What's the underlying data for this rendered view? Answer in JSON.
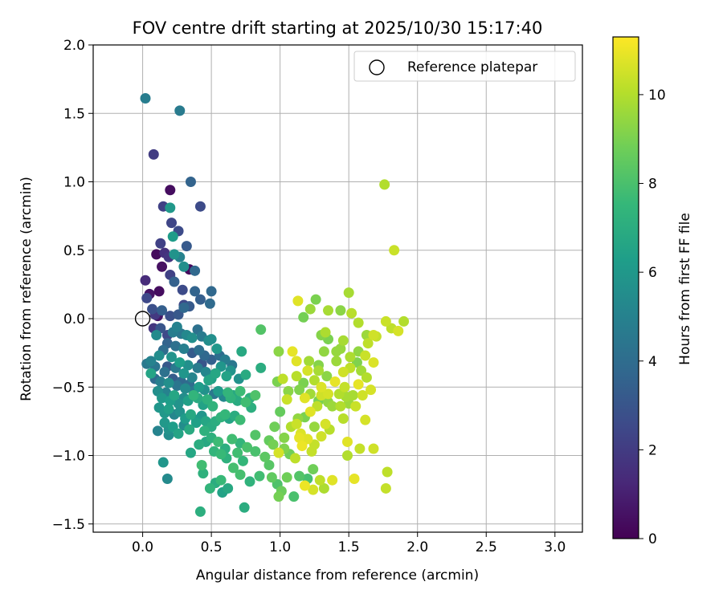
{
  "chart_data": {
    "type": "scatter",
    "title": "FOV centre drift starting at 2025/10/30 15:17:40",
    "xlabel": "Angular distance from reference (arcmin)",
    "ylabel": "Rotation from reference (arcmin)",
    "xlim": [
      -0.36,
      3.2
    ],
    "ylim": [
      -1.56,
      2.0
    ],
    "xticks": [
      0.0,
      0.5,
      1.0,
      1.5,
      2.0,
      2.5,
      3.0
    ],
    "xtick_labels": [
      "0.0",
      "0.5",
      "1.0",
      "1.5",
      "2.0",
      "2.5",
      "3.0"
    ],
    "yticks": [
      -1.5,
      -1.0,
      -0.5,
      0.0,
      0.5,
      1.0,
      1.5,
      2.0
    ],
    "ytick_labels": [
      "−1.5",
      "−1.0",
      "−0.5",
      "0.0",
      "0.5",
      "1.0",
      "1.5",
      "2.0"
    ],
    "grid": true,
    "legend": {
      "placement": "top-right",
      "entries": [
        {
          "label": "Reference platepar",
          "marker": "open-circle"
        }
      ]
    },
    "reference_point": {
      "x": 0.0,
      "y": 0.0
    },
    "colorbar": {
      "label": "Hours from first FF file",
      "colormap": "viridis",
      "range": [
        0,
        11.3
      ],
      "ticks": [
        0,
        2,
        4,
        6,
        8,
        10
      ],
      "tick_labels": [
        "0",
        "2",
        "4",
        "6",
        "8",
        "10"
      ]
    },
    "points": [
      [
        0.02,
        0.28,
        1.4
      ],
      [
        0.03,
        0.15,
        2.5
      ],
      [
        0.05,
        0.18,
        0.6
      ],
      [
        0.07,
        0.07,
        2.8
      ],
      [
        0.09,
        0.03,
        1.9
      ],
      [
        0.11,
        0.02,
        0.7
      ],
      [
        0.12,
        0.2,
        0.4
      ],
      [
        0.14,
        0.38,
        0.5
      ],
      [
        0.1,
        0.47,
        0.3
      ],
      [
        0.13,
        0.55,
        2.2
      ],
      [
        0.16,
        0.48,
        1.6
      ],
      [
        0.19,
        0.45,
        1.8
      ],
      [
        0.2,
        0.94,
        0.4
      ],
      [
        0.15,
        0.82,
        2.2
      ],
      [
        0.21,
        0.7,
        2.4
      ],
      [
        0.26,
        0.64,
        2.6
      ],
      [
        0.22,
        0.6,
        6.2
      ],
      [
        0.2,
        0.81,
        6.0
      ],
      [
        0.23,
        0.47,
        5.8
      ],
      [
        0.27,
        0.45,
        5.0
      ],
      [
        0.3,
        0.38,
        5.6
      ],
      [
        0.32,
        0.53,
        3.2
      ],
      [
        0.34,
        0.36,
        0.3
      ],
      [
        0.38,
        0.35,
        3.8
      ],
      [
        0.42,
        0.82,
        2.6
      ],
      [
        0.35,
        1.0,
        3.6
      ],
      [
        0.02,
        1.61,
        4.8
      ],
      [
        0.27,
        1.52,
        4.7
      ],
      [
        0.08,
        1.2,
        2.0
      ],
      [
        0.2,
        0.32,
        2.2
      ],
      [
        0.23,
        0.27,
        3.5
      ],
      [
        0.29,
        0.21,
        2.6
      ],
      [
        0.38,
        0.2,
        3.6
      ],
      [
        0.5,
        0.2,
        3.8
      ],
      [
        0.14,
        0.06,
        3.4
      ],
      [
        0.2,
        0.02,
        2.8
      ],
      [
        0.26,
        0.03,
        3.1
      ],
      [
        0.3,
        0.08,
        3.8
      ],
      [
        0.34,
        0.09,
        3.2
      ],
      [
        0.3,
        0.1,
        2.5
      ],
      [
        0.42,
        0.14,
        3.4
      ],
      [
        0.49,
        0.11,
        3.9
      ],
      [
        0.08,
        -0.07,
        1.8
      ],
      [
        0.1,
        -0.12,
        5.4
      ],
      [
        0.13,
        -0.07,
        3.0
      ],
      [
        0.18,
        -0.12,
        2.5
      ],
      [
        0.22,
        -0.1,
        4.8
      ],
      [
        0.25,
        -0.06,
        5.0
      ],
      [
        0.28,
        -0.11,
        4.5
      ],
      [
        0.32,
        -0.12,
        5.3
      ],
      [
        0.36,
        -0.14,
        5.6
      ],
      [
        0.4,
        -0.08,
        4.2
      ],
      [
        0.43,
        -0.13,
        4.7
      ],
      [
        0.48,
        -0.16,
        5.5
      ],
      [
        0.5,
        -0.15,
        5.6
      ],
      [
        0.54,
        -0.22,
        6.0
      ],
      [
        0.18,
        -0.18,
        3.6
      ],
      [
        0.24,
        -0.2,
        4.2
      ],
      [
        0.3,
        -0.22,
        4.9
      ],
      [
        0.36,
        -0.25,
        3.3
      ],
      [
        0.41,
        -0.23,
        4.1
      ],
      [
        0.45,
        -0.27,
        3.8
      ],
      [
        0.5,
        -0.3,
        3.5
      ],
      [
        0.56,
        -0.27,
        4.0
      ],
      [
        0.6,
        -0.3,
        4.8
      ],
      [
        0.65,
        -0.34,
        4.5
      ],
      [
        0.72,
        -0.24,
        6.8
      ],
      [
        0.03,
        -0.33,
        4.6
      ],
      [
        0.06,
        -0.31,
        5.0
      ],
      [
        0.09,
        -0.35,
        4.4
      ],
      [
        0.12,
        -0.27,
        5.5
      ],
      [
        0.15,
        -0.23,
        4.0
      ],
      [
        0.18,
        -0.35,
        3.1
      ],
      [
        0.21,
        -0.28,
        5.8
      ],
      [
        0.24,
        -0.36,
        4.6
      ],
      [
        0.27,
        -0.32,
        6.3
      ],
      [
        0.3,
        -0.4,
        5.9
      ],
      [
        0.33,
        -0.34,
        5.6
      ],
      [
        0.36,
        -0.43,
        5.1
      ],
      [
        0.4,
        -0.36,
        4.7
      ],
      [
        0.43,
        -0.33,
        3.0
      ],
      [
        0.46,
        -0.39,
        5.2
      ],
      [
        0.5,
        -0.44,
        6.4
      ],
      [
        0.53,
        -0.4,
        6.7
      ],
      [
        0.57,
        -0.35,
        5.9
      ],
      [
        0.61,
        -0.42,
        6.5
      ],
      [
        0.64,
        -0.38,
        5.8
      ],
      [
        0.7,
        -0.44,
        5.7
      ],
      [
        0.75,
        -0.41,
        6.9
      ],
      [
        0.86,
        -0.36,
        7.0
      ],
      [
        0.06,
        -0.4,
        6.6
      ],
      [
        0.09,
        -0.44,
        3.9
      ],
      [
        0.13,
        -0.46,
        4.9
      ],
      [
        0.16,
        -0.39,
        4.2
      ],
      [
        0.19,
        -0.47,
        5.6
      ],
      [
        0.22,
        -0.44,
        3.3
      ],
      [
        0.25,
        -0.49,
        4.4
      ],
      [
        0.28,
        -0.46,
        3.8
      ],
      [
        0.31,
        -0.51,
        5.4
      ],
      [
        0.34,
        -0.48,
        4.0
      ],
      [
        0.37,
        -0.53,
        4.6
      ],
      [
        0.41,
        -0.5,
        6.2
      ],
      [
        0.45,
        -0.52,
        5.7
      ],
      [
        0.48,
        -0.45,
        6.6
      ],
      [
        0.52,
        -0.55,
        4.5
      ],
      [
        0.55,
        -0.53,
        6.1
      ],
      [
        0.59,
        -0.57,
        5.3
      ],
      [
        0.62,
        -0.54,
        7.4
      ],
      [
        0.66,
        -0.56,
        6.8
      ],
      [
        0.71,
        -0.53,
        7.7
      ],
      [
        0.78,
        -0.58,
        7.2
      ],
      [
        0.82,
        -0.56,
        8.1
      ],
      [
        0.11,
        -0.53,
        5.6
      ],
      [
        0.14,
        -0.58,
        6.0
      ],
      [
        0.17,
        -0.54,
        5.0
      ],
      [
        0.2,
        -0.6,
        6.3
      ],
      [
        0.23,
        -0.56,
        6.7
      ],
      [
        0.26,
        -0.62,
        5.8
      ],
      [
        0.3,
        -0.58,
        5.5
      ],
      [
        0.33,
        -0.6,
        6.4
      ],
      [
        0.37,
        -0.56,
        7.4
      ],
      [
        0.4,
        -0.58,
        6.9
      ],
      [
        0.44,
        -0.63,
        6.5
      ],
      [
        0.47,
        -0.59,
        7.2
      ],
      [
        0.51,
        -0.64,
        7.3
      ],
      [
        0.12,
        -0.65,
        5.9
      ],
      [
        0.16,
        -0.69,
        6.0
      ],
      [
        0.19,
        -0.66,
        6.4
      ],
      [
        0.23,
        -0.7,
        5.2
      ],
      [
        0.27,
        -0.68,
        5.7
      ],
      [
        0.31,
        -0.73,
        6.2
      ],
      [
        0.35,
        -0.7,
        6.8
      ],
      [
        0.39,
        -0.76,
        6.4
      ],
      [
        0.43,
        -0.71,
        5.9
      ],
      [
        0.46,
        -0.75,
        6.7
      ],
      [
        0.5,
        -0.79,
        6.9
      ],
      [
        0.53,
        -0.75,
        7.0
      ],
      [
        0.57,
        -0.72,
        7.3
      ],
      [
        0.6,
        -0.7,
        7.5
      ],
      [
        0.63,
        -0.73,
        6.6
      ],
      [
        0.67,
        -0.71,
        7.0
      ],
      [
        0.71,
        -0.74,
        7.7
      ],
      [
        0.16,
        -0.76,
        6.0
      ],
      [
        0.19,
        -0.81,
        5.8
      ],
      [
        0.22,
        -0.79,
        6.3
      ],
      [
        0.26,
        -0.84,
        6.6
      ],
      [
        0.3,
        -0.78,
        5.5
      ],
      [
        0.34,
        -0.81,
        6.9
      ],
      [
        0.39,
        -0.74,
        6.1
      ],
      [
        0.45,
        -0.82,
        7.2
      ],
      [
        0.11,
        -0.82,
        5.1
      ],
      [
        0.19,
        -0.85,
        5.5
      ],
      [
        0.41,
        -0.92,
        7.0
      ],
      [
        0.46,
        -0.9,
        6.8
      ],
      [
        0.5,
        -0.87,
        7.2
      ],
      [
        0.55,
        -0.9,
        7.7
      ],
      [
        0.6,
        -0.95,
        7.1
      ],
      [
        0.65,
        -0.88,
        7.8
      ],
      [
        0.71,
        -0.91,
        7.4
      ],
      [
        0.76,
        -0.94,
        8.0
      ],
      [
        0.52,
        -0.97,
        7.4
      ],
      [
        0.57,
        -0.99,
        7.6
      ],
      [
        0.61,
        -1.02,
        7.2
      ],
      [
        0.69,
        -0.98,
        7.8
      ],
      [
        0.73,
        -1.04,
        7.5
      ],
      [
        0.66,
        -1.09,
        7.9
      ],
      [
        0.82,
        -0.85,
        8.2
      ],
      [
        0.92,
        -0.89,
        8.6
      ],
      [
        0.95,
        -0.92,
        8.9
      ],
      [
        0.82,
        -0.97,
        8.0
      ],
      [
        0.89,
        -1.01,
        8.4
      ],
      [
        0.35,
        -0.98,
        6.7
      ],
      [
        0.43,
        -1.07,
        7.8
      ],
      [
        0.44,
        -1.13,
        7.2
      ],
      [
        0.15,
        -1.05,
        5.9
      ],
      [
        0.18,
        -1.17,
        5.4
      ],
      [
        0.49,
        -1.24,
        7.4
      ],
      [
        0.53,
        -1.2,
        7.0
      ],
      [
        0.57,
        -1.18,
        7.6
      ],
      [
        0.62,
        -1.24,
        6.8
      ],
      [
        0.71,
        -1.14,
        7.9
      ],
      [
        0.78,
        -1.19,
        7.3
      ],
      [
        0.85,
        -1.15,
        7.8
      ],
      [
        0.58,
        -1.27,
        6.5
      ],
      [
        0.74,
        -1.38,
        7.0
      ],
      [
        0.42,
        -1.41,
        7.1
      ],
      [
        0.92,
        -1.07,
        8.3
      ],
      [
        0.94,
        -1.16,
        8.5
      ],
      [
        0.98,
        -1.21,
        8.1
      ],
      [
        1.01,
        -1.26,
        8.7
      ],
      [
        1.05,
        -1.16,
        8.8
      ],
      [
        1.1,
        -1.3,
        8.0
      ],
      [
        0.99,
        -1.3,
        8.9
      ],
      [
        1.14,
        -1.15,
        8.2
      ],
      [
        1.2,
        -1.17,
        7.9
      ],
      [
        1.24,
        -1.1,
        8.8
      ],
      [
        1.18,
        -1.22,
        11.0
      ],
      [
        1.29,
        -1.18,
        10.2
      ],
      [
        1.32,
        -1.24,
        9.9
      ],
      [
        1.38,
        -1.18,
        10.8
      ],
      [
        1.24,
        -1.25,
        10.6
      ],
      [
        1.54,
        -1.17,
        10.9
      ],
      [
        1.77,
        -1.24,
        10.3
      ],
      [
        1.78,
        -1.12,
        10.2
      ],
      [
        0.96,
        -0.79,
        8.8
      ],
      [
        1.0,
        -0.68,
        8.6
      ],
      [
        1.03,
        -0.87,
        9.2
      ],
      [
        1.08,
        -0.79,
        10.0
      ],
      [
        1.12,
        -0.77,
        10.4
      ],
      [
        1.15,
        -0.84,
        10.7
      ],
      [
        1.18,
        -0.72,
        9.0
      ],
      [
        1.22,
        -0.68,
        10.8
      ],
      [
        1.25,
        -0.79,
        9.5
      ],
      [
        1.3,
        -0.86,
        10.5
      ],
      [
        1.33,
        -0.77,
        10.6
      ],
      [
        1.36,
        -0.81,
        10.1
      ],
      [
        1.03,
        -0.95,
        9.1
      ],
      [
        1.07,
        -0.99,
        8.8
      ],
      [
        1.11,
        -1.02,
        10.2
      ],
      [
        1.16,
        -0.93,
        11.0
      ],
      [
        1.2,
        -0.88,
        10.8
      ],
      [
        1.23,
        -0.97,
        10.3
      ],
      [
        0.99,
        -0.98,
        10.6
      ],
      [
        1.06,
        -0.53,
        9.3
      ],
      [
        1.05,
        -0.59,
        10.4
      ],
      [
        1.14,
        -0.52,
        9.1
      ],
      [
        1.18,
        -0.58,
        10.8
      ],
      [
        1.22,
        -0.55,
        9.7
      ],
      [
        1.27,
        -0.64,
        10.2
      ],
      [
        1.3,
        -0.56,
        10.5
      ],
      [
        1.35,
        -0.61,
        9.4
      ],
      [
        1.38,
        -0.64,
        9.6
      ],
      [
        1.43,
        -0.55,
        10.0
      ],
      [
        1.47,
        -0.5,
        10.3
      ],
      [
        1.5,
        -0.62,
        9.6
      ],
      [
        1.53,
        -0.56,
        9.8
      ],
      [
        1.57,
        -0.48,
        10.9
      ],
      [
        1.6,
        -0.56,
        10.5
      ],
      [
        1.63,
        -0.43,
        10.0
      ],
      [
        1.66,
        -0.52,
        10.6
      ],
      [
        1.68,
        -0.32,
        10.7
      ],
      [
        0.98,
        -0.46,
        9.0
      ],
      [
        1.02,
        -0.44,
        10.2
      ],
      [
        1.12,
        -0.42,
        10.1
      ],
      [
        1.17,
        -0.47,
        9.0
      ],
      [
        1.2,
        -0.38,
        10.6
      ],
      [
        1.25,
        -0.45,
        10.0
      ],
      [
        1.28,
        -0.38,
        9.8
      ],
      [
        1.34,
        -0.42,
        9.3
      ],
      [
        1.41,
        -0.31,
        9.6
      ],
      [
        1.46,
        -0.39,
        10.5
      ],
      [
        1.51,
        -0.36,
        10.2
      ],
      [
        1.56,
        -0.32,
        9.1
      ],
      [
        1.59,
        -0.38,
        9.7
      ],
      [
        1.62,
        -0.27,
        10.4
      ],
      [
        1.44,
        -0.22,
        9.5
      ],
      [
        1.51,
        -0.28,
        9.9
      ],
      [
        1.57,
        -0.24,
        9.4
      ],
      [
        1.64,
        -0.18,
        10.2
      ],
      [
        1.3,
        -0.12,
        9.2
      ],
      [
        1.35,
        -0.15,
        9.0
      ],
      [
        1.41,
        -0.24,
        9.5
      ],
      [
        1.46,
        -0.16,
        9.8
      ],
      [
        1.09,
        -0.24,
        10.9
      ],
      [
        0.99,
        -0.24,
        9.3
      ],
      [
        1.12,
        -0.31,
        10.8
      ],
      [
        1.21,
        -0.31,
        9.7
      ],
      [
        1.28,
        -0.34,
        9.2
      ],
      [
        1.32,
        -0.24,
        9.4
      ],
      [
        1.17,
        0.01,
        8.9
      ],
      [
        1.13,
        0.13,
        10.8
      ],
      [
        1.22,
        0.07,
        9.6
      ],
      [
        1.26,
        0.14,
        9.0
      ],
      [
        1.35,
        0.06,
        9.8
      ],
      [
        1.33,
        -0.1,
        9.9
      ],
      [
        1.44,
        0.06,
        9.3
      ],
      [
        1.52,
        0.04,
        10.1
      ],
      [
        1.57,
        -0.03,
        10.0
      ],
      [
        1.5,
        0.19,
        9.8
      ],
      [
        1.63,
        -0.12,
        9.6
      ],
      [
        1.68,
        -0.12,
        10.5
      ],
      [
        1.7,
        -0.13,
        10.3
      ],
      [
        1.77,
        -0.02,
        10.4
      ],
      [
        1.81,
        -0.07,
        10.2
      ],
      [
        1.86,
        -0.09,
        10.6
      ],
      [
        1.9,
        -0.02,
        10.0
      ],
      [
        1.83,
        0.5,
        10.4
      ],
      [
        1.76,
        0.98,
        10.0
      ],
      [
        0.86,
        -0.08,
        8.2
      ],
      [
        1.3,
        -0.5,
        10.7
      ],
      [
        1.4,
        -0.46,
        10.9
      ],
      [
        1.46,
        -0.73,
        10.1
      ],
      [
        1.49,
        -0.9,
        10.8
      ],
      [
        1.55,
        -0.64,
        10.4
      ],
      [
        1.62,
        -0.74,
        10.6
      ],
      [
        1.68,
        -0.95,
        10.5
      ],
      [
        1.58,
        -0.95,
        10.3
      ],
      [
        1.49,
        -1.0,
        10.0
      ],
      [
        1.14,
        -0.87,
        10.9
      ],
      [
        1.25,
        -0.92,
        10.3
      ],
      [
        1.13,
        -0.73,
        9.4
      ],
      [
        1.28,
        -0.6,
        9.0
      ],
      [
        1.35,
        -0.55,
        10.6
      ],
      [
        1.44,
        -0.64,
        10.0
      ],
      [
        1.48,
        -0.57,
        9.8
      ],
      [
        0.64,
        -0.58,
        7.3
      ],
      [
        0.69,
        -0.6,
        6.9
      ],
      [
        0.75,
        -0.61,
        7.8
      ],
      [
        0.79,
        -0.65,
        7.1
      ]
    ]
  }
}
